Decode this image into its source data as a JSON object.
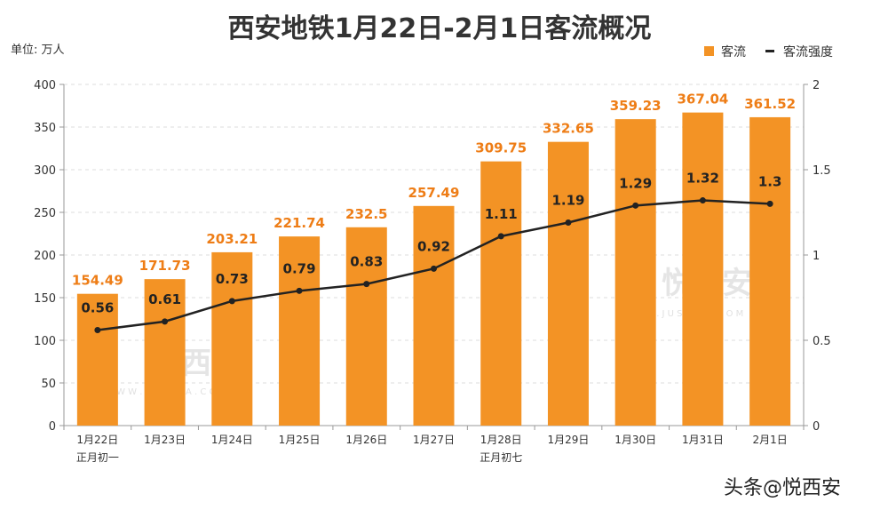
{
  "chart_data": {
    "type": "bar",
    "title": "西安地铁1月22日-2月1日客流概况",
    "unit_label": "单位: 万人",
    "categories": [
      "1月22日",
      "1月23日",
      "1月24日",
      "1月25日",
      "1月26日",
      "1月27日",
      "1月28日",
      "1月29日",
      "1月30日",
      "1月31日",
      "2月1日"
    ],
    "category_sublabels": [
      "正月初一",
      "",
      "",
      "",
      "",
      "",
      "正月初七",
      "",
      "",
      "",
      ""
    ],
    "series": [
      {
        "name": "客流",
        "type": "bar",
        "axis": "left",
        "color": "#f39325",
        "values": [
          154.49,
          171.73,
          203.21,
          221.74,
          232.5,
          257.49,
          309.75,
          332.65,
          359.23,
          367.04,
          361.52
        ],
        "labels": [
          "154.49",
          "171.73",
          "203.21",
          "221.74",
          "232.5",
          "257.49",
          "309.75",
          "332.65",
          "359.23",
          "367.04",
          "361.52"
        ]
      },
      {
        "name": "客流强度",
        "type": "line",
        "axis": "right",
        "color": "#222222",
        "values": [
          0.56,
          0.61,
          0.73,
          0.79,
          0.83,
          0.92,
          1.11,
          1.19,
          1.29,
          1.32,
          1.3
        ],
        "labels": [
          "0.56",
          "0.61",
          "0.73",
          "0.79",
          "0.83",
          "0.92",
          "1.11",
          "1.19",
          "1.29",
          "1.32",
          "1.3"
        ]
      }
    ],
    "ylim": [
      0,
      400
    ],
    "yticks": [
      "0",
      "50",
      "100",
      "150",
      "200",
      "250",
      "300",
      "350",
      "400"
    ],
    "y2lim": [
      0,
      2
    ],
    "y2ticks": [
      "0",
      "0.5",
      "1",
      "1.5",
      "2"
    ],
    "grid": true,
    "legend_position": "top-right"
  },
  "watermark": {
    "brand": "悦西安",
    "site": "W W W . J U S T X A . C O M",
    "footer": "头条@悦西安"
  }
}
